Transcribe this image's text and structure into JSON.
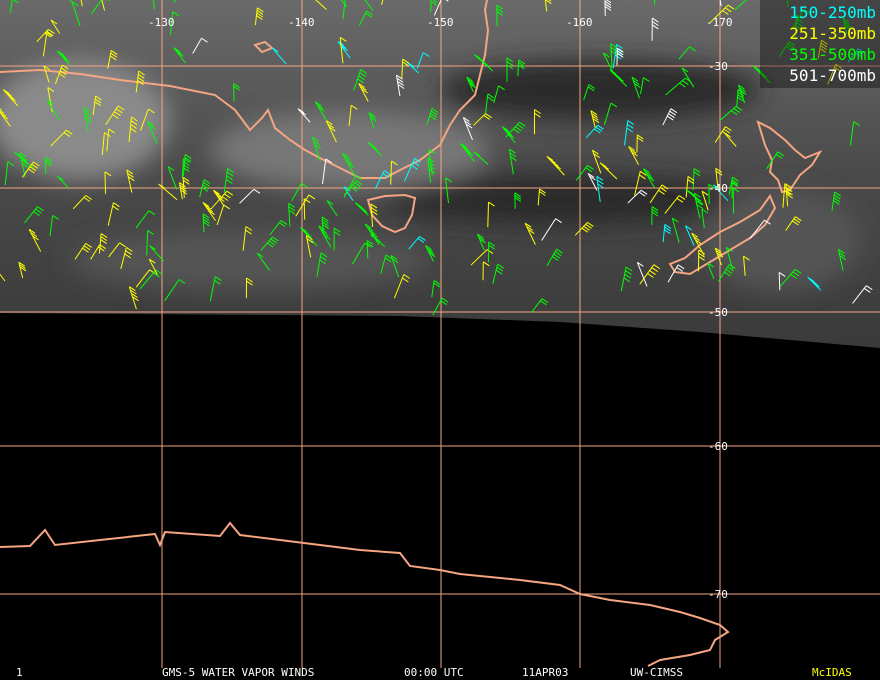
{
  "legend": [
    {
      "label": "150-250mb",
      "color": "#00ffff"
    },
    {
      "label": "251-350mb",
      "color": "#ffff00"
    },
    {
      "label": "351-500mb",
      "color": "#00ff00"
    },
    {
      "label": "501-700mb",
      "color": "#ffffff"
    }
  ],
  "longitude_labels": [
    "-130",
    "-140",
    "-150",
    "-160",
    "-170"
  ],
  "latitude_labels": [
    "-30",
    "-40",
    "-50",
    "-60",
    "-70"
  ],
  "footer": {
    "frame": "1",
    "title": "GMS-5 WATER VAPOR WINDS",
    "time": "00:00 UTC",
    "date": "11APR03",
    "source": "UW-CIMSS",
    "software": "McIDAS"
  }
}
